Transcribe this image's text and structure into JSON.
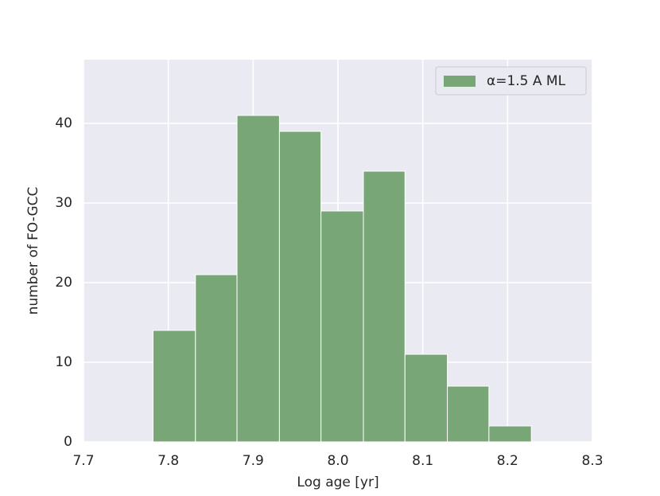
{
  "chart_data": {
    "type": "histogram",
    "x_label": "Log age [yr]",
    "y_label": "number of FO-GCC",
    "bins": [
      7.782,
      7.832,
      7.881,
      7.931,
      7.98,
      8.03,
      8.079,
      8.129,
      8.178,
      8.228
    ],
    "series": [
      {
        "name": "α=1.5 A ML",
        "color": "#78a676",
        "values": [
          14,
          21,
          41,
          39,
          29,
          34,
          11,
          7,
          2
        ]
      }
    ],
    "xlim": [
      7.7,
      8.3
    ],
    "ylim": [
      0,
      48
    ],
    "xticks": [
      7.7,
      7.8,
      7.9,
      {
        "value": 8,
        "label": "8.0"
      },
      8.1,
      8.2,
      8.3
    ],
    "yticks": [
      0,
      10,
      20,
      30,
      40
    ],
    "grid": true,
    "legend": "upper right"
  }
}
